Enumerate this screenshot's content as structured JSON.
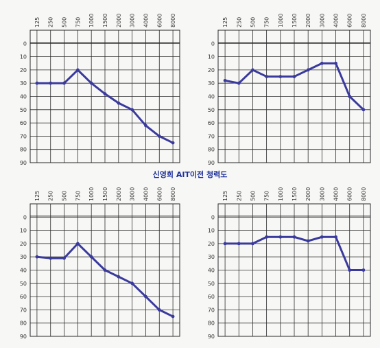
{
  "caption": "신영희 AIT이전 청력도",
  "chart_data": [
    {
      "type": "line",
      "title": "",
      "xlabel": "",
      "ylabel": "",
      "categories": [
        "125",
        "250",
        "500",
        "750",
        "1000",
        "1500",
        "2000",
        "3000",
        "4000",
        "6000",
        "8000"
      ],
      "y_ticks": [
        "0",
        "10",
        "20",
        "30",
        "40",
        "50",
        "60",
        "70",
        "80",
        "90"
      ],
      "ylim": [
        -10,
        90
      ],
      "grid": true,
      "series": [
        {
          "values": [
            30,
            30,
            30,
            20,
            30,
            38,
            45,
            50,
            62,
            70,
            75
          ]
        }
      ]
    },
    {
      "type": "line",
      "title": "",
      "xlabel": "",
      "ylabel": "",
      "categories": [
        "125",
        "250",
        "500",
        "750",
        "1000",
        "1500",
        "2000",
        "3000",
        "4000",
        "6000",
        "8000"
      ],
      "y_ticks": [
        "0",
        "10",
        "20",
        "30",
        "40",
        "50",
        "60",
        "70",
        "80",
        "90"
      ],
      "ylim": [
        -10,
        90
      ],
      "grid": true,
      "series": [
        {
          "values": [
            28,
            30,
            20,
            25,
            25,
            25,
            20,
            15,
            15,
            40,
            50
          ]
        }
      ]
    },
    {
      "type": "line",
      "title": "",
      "xlabel": "",
      "ylabel": "",
      "categories": [
        "125",
        "250",
        "500",
        "750",
        "1000",
        "1500",
        "2000",
        "3000",
        "4000",
        "6000",
        "8000"
      ],
      "y_ticks": [
        "0",
        "10",
        "20",
        "30",
        "40",
        "50",
        "60",
        "70",
        "80",
        "90"
      ],
      "ylim": [
        -10,
        90
      ],
      "grid": true,
      "series": [
        {
          "values": [
            30,
            31,
            31,
            20,
            30,
            40,
            45,
            50,
            60,
            70,
            75
          ]
        }
      ]
    },
    {
      "type": "line",
      "title": "",
      "xlabel": "",
      "ylabel": "",
      "categories": [
        "125",
        "250",
        "500",
        "750",
        "1000",
        "1500",
        "2000",
        "3000",
        "4000",
        "6000",
        "8000"
      ],
      "y_ticks": [
        "0",
        "10",
        "20",
        "30",
        "40",
        "50",
        "60",
        "70",
        "80",
        "90"
      ],
      "ylim": [
        -10,
        90
      ],
      "grid": true,
      "series": [
        {
          "values": [
            20,
            20,
            20,
            15,
            15,
            15,
            18,
            15,
            15,
            40,
            40
          ]
        }
      ]
    }
  ],
  "colors": {
    "line": "#3a3a9e",
    "grid": "#2a2a2a",
    "text": "#333333",
    "caption": "#1d2f9a"
  }
}
